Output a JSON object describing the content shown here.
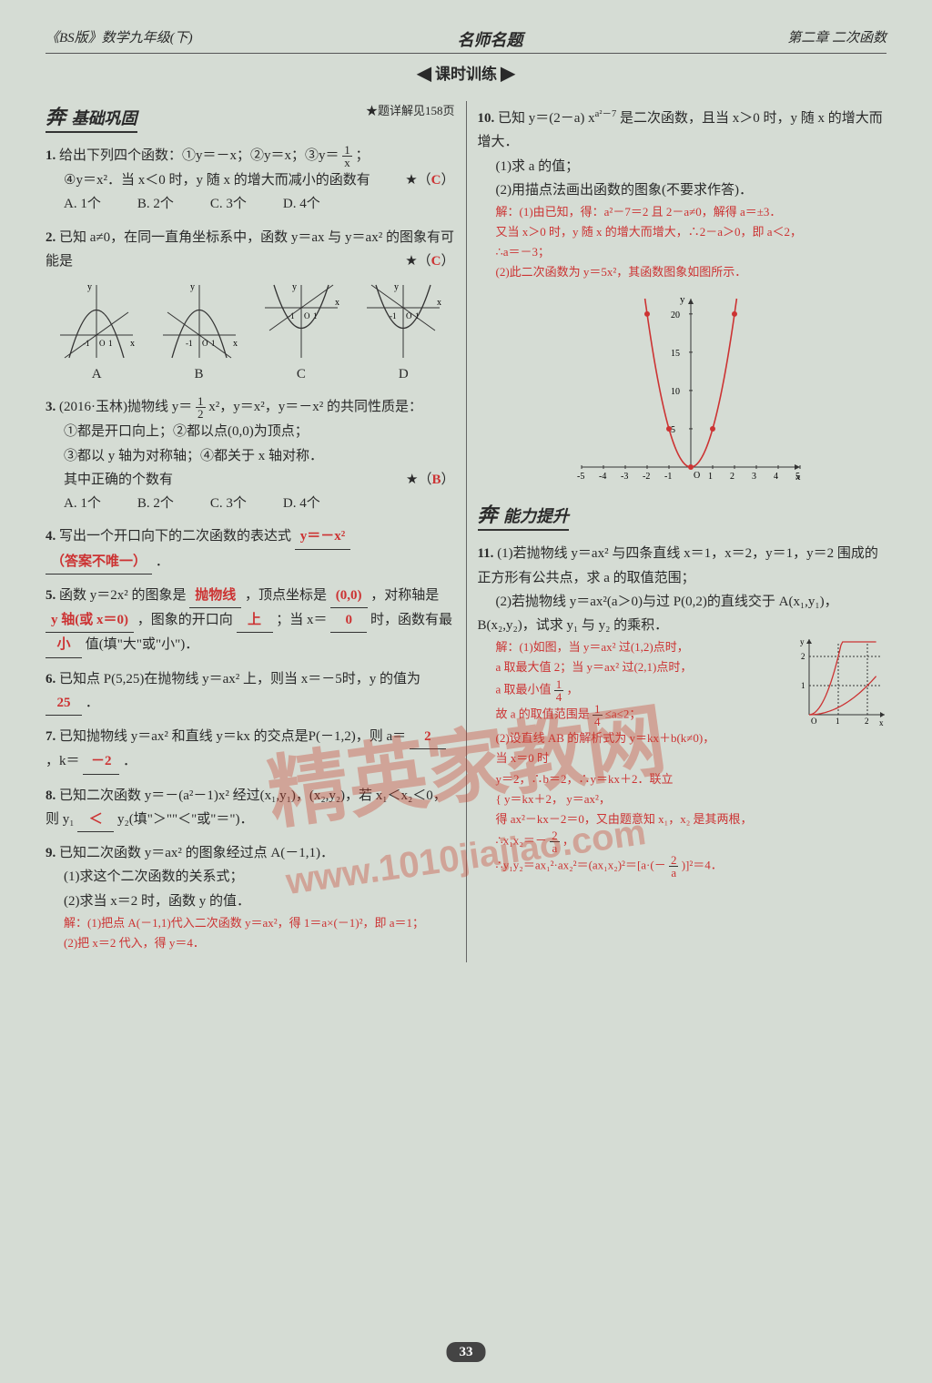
{
  "header": {
    "left": "《BS版》数学九年级(下)",
    "center": "名师名题",
    "right": "第二章 二次函数"
  },
  "subheader": {
    "icon": "◀",
    "label": "课时训练",
    "icon2": "▶"
  },
  "section_basic": {
    "icon": "奔",
    "title": "基础巩固",
    "ref": "★题详解见158页"
  },
  "section_ability": {
    "icon": "奔",
    "title": "能力提升"
  },
  "q1": {
    "num": "1.",
    "text_a": "给出下列四个函数：①y＝－x；②y＝x；③y＝",
    "frac_n": "1",
    "frac_d": "x",
    "text_b": "；",
    "text_c": "④y＝x²．当 x＜0 时，y 随 x 的增大而减小的函数有",
    "star": "★（",
    "answer": "C",
    "close": "）",
    "opts": [
      "A. 1个",
      "B. 2个",
      "C. 3个",
      "D. 4个"
    ]
  },
  "q2": {
    "num": "2.",
    "text": "已知 a≠0，在同一直角坐标系中，函数 y＝ax 与 y＝ax² 的图象有可能是",
    "star": "★（",
    "answer": "C",
    "close": "）",
    "graph_labels": [
      "A",
      "B",
      "C",
      "D"
    ],
    "axis_color": "#333",
    "curve_color": "#333"
  },
  "q3": {
    "num": "3.",
    "text_a": "(2016·玉林)抛物线 y＝",
    "frac_n": "1",
    "frac_d": "2",
    "text_b": "x²，y＝x²，y＝－x² 的共同性质是：",
    "items": [
      "①都是开口向上；②都以点(0,0)为顶点；",
      "③都以 y 轴为对称轴；④都关于 x 轴对称．"
    ],
    "text_c": "其中正确的个数有",
    "star": "★（",
    "answer": "B",
    "close": "）",
    "opts": [
      "A. 1个",
      "B. 2个",
      "C. 3个",
      "D. 4个"
    ]
  },
  "q4": {
    "num": "4.",
    "text_a": "写出一个开口向下的二次函数的表达式",
    "ans": "y＝－x²",
    "text_b": "（答案不唯一）",
    "text_c": "．"
  },
  "q5": {
    "num": "5.",
    "text_a": "函数 y＝2x² 的图象是",
    "ans1": "抛物线",
    "text_b": "，顶点坐标是",
    "ans2": "(0,0)",
    "text_c": "，对称轴是",
    "ans3": "y 轴(或 x＝0)",
    "text_d": "，图象的开口向",
    "ans4": "上",
    "text_e": "；当 x＝",
    "ans5": "0",
    "text_f": "时，函数有最",
    "ans6": "小",
    "text_g": "值(填\"大\"或\"小\")．"
  },
  "q6": {
    "num": "6.",
    "text_a": "已知点 P(5,25)在抛物线 y＝ax² 上，则当 x＝－5时，y 的值为",
    "ans": "25",
    "text_b": "．"
  },
  "q7": {
    "num": "7.",
    "text_a": "已知抛物线 y＝ax² 和直线 y＝kx 的交点是P(－1,2)，则 a＝",
    "ans1": "2",
    "text_b": "，k＝",
    "ans2": "－2",
    "text_c": "．"
  },
  "q8": {
    "num": "8.",
    "text_a": "已知二次函数 y＝－(a²－1)x² 经过(x₁,y₁)，(x₂,y₂)，若 x₁＜x₂＜0，则 y₁",
    "ans": "＜",
    "text_b": "y₂(填\"＞\"\"＜\"或\"＝\")．"
  },
  "q9": {
    "num": "9.",
    "text": "已知二次函数 y＝ax² 的图象经过点 A(－1,1)．",
    "sub1": "(1)求这个二次函数的关系式；",
    "sub2": "(2)求当 x＝2 时，函数 y 的值．",
    "sol": [
      "解：(1)把点 A(－1,1)代入二次函数 y＝ax²，得 1＝a×(－1)²，即 a＝1；",
      "(2)把 x＝2 代入，得 y＝4．"
    ]
  },
  "q10": {
    "num": "10.",
    "text_a": "已知 y＝(2－a) x",
    "sup": "a²－7",
    "text_b": "是二次函数，且当 x＞0 时，y 随 x 的增大而增大．",
    "sub1": "(1)求 a 的值；",
    "sub2": "(2)用描点法画出函数的图象(不要求作答)．",
    "sol": [
      "解：(1)由已知，得：a²－7＝2 且 2－a≠0，解得 a＝±3．",
      "又当 x＞0 时，y 随 x 的增大而增大，∴2－a＞0，即 a＜2，",
      "∴a＝－3；",
      "(2)此二次函数为 y＝5x²，其函数图象如图所示．"
    ],
    "chart": {
      "type": "parabola",
      "xlim": [
        -5,
        5
      ],
      "ylim": [
        0,
        22
      ],
      "xticks": [
        -5,
        -4,
        -3,
        -2,
        -1,
        0,
        1,
        2,
        3,
        4,
        5
      ],
      "yticks": [
        5,
        10,
        15,
        20
      ],
      "points_x": [
        -2,
        -1,
        0,
        1,
        2
      ],
      "curve_color": "#c33",
      "point_color": "#c33",
      "axis_color": "#333",
      "background": "#d5dcd4"
    }
  },
  "q11": {
    "num": "11.",
    "text_a": "(1)若抛物线 y＝ax² 与四条直线 x＝1，x＝2，y＝1，y＝2 围成的正方形有公共点，求 a 的取值范围；",
    "text_b": "(2)若抛物线 y＝ax²(a＞0)与过 P(0,2)的直线交于 A(x₁,y₁)，B(x₂,y₂)，试求 y₁ 与 y₂ 的乘积．",
    "sol1": [
      "解：(1)如图，当 y＝ax² 过(1,2)点时，",
      "a 取最大值 2；当 y＝ax² 过(2,1)点时，",
      "a 取最小值 "
    ],
    "frac1_n": "1",
    "frac1_d": "4",
    "sol1b": "，",
    "sol1c": "故 a 的取值范围是 ",
    "frac2_n": "1",
    "frac2_d": "4",
    "sol1d": "≤a≤2；",
    "sol2": [
      "(2)设直线 AB 的解析式为 y＝kx＋b(k≠0)，",
      "当 x＝0 时",
      "y＝2，∴b＝2，∴y＝kx＋2．联立",
      "{ y＝kx＋2，\n y＝ax²，",
      "得 ax²－kx－2＝0，又由题意知 x₁，x₂ 是其两根，",
      "∴x₁x₂＝－"
    ],
    "frac3_n": "2",
    "frac3_d": "a",
    "sol2b": "，",
    "sol2c": "∴y₁y₂＝ax₁²·ax₂²＝(ax₁x₂)²＝[a·(－",
    "frac4_n": "2",
    "frac4_d": "a",
    "sol2d": ")]²＝4．",
    "mini_chart": {
      "xlim": [
        0,
        2.5
      ],
      "ylim": [
        0,
        2.5
      ],
      "xticks": [
        1,
        2
      ],
      "yticks": [
        1,
        2
      ],
      "curve_color": "#c33",
      "axis_color": "#333"
    }
  },
  "page_number": "33",
  "watermark": {
    "text": "精英家教网",
    "url": "www.1010jiajiao.com"
  }
}
